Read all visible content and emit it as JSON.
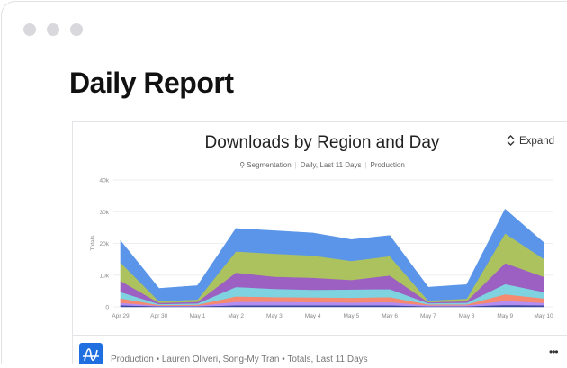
{
  "page": {
    "title": "Daily Report"
  },
  "card": {
    "expand_label": "Expand",
    "expand_icon": "chevron-up-down-icon",
    "subtitle": {
      "segment_icon": "segmentation-icon",
      "type": "Segmentation",
      "range": "Daily, Last 11 Days",
      "project": "Production"
    },
    "footer": {
      "text": "Production • Lauren Oliveri, Song-My Tran • Totals, Last 11 Days",
      "more_label": "•••",
      "app_icon": "amplitude-logo",
      "app_icon_color": "#1f6fe0"
    }
  },
  "chart_data": {
    "type": "area",
    "stacked": true,
    "title": "Downloads by Region and Day",
    "ylabel": "Totals",
    "xlabel": "",
    "ylim": [
      0,
      40000
    ],
    "yticks": [
      {
        "value": 0,
        "label": "0"
      },
      {
        "value": 10000,
        "label": "10k"
      },
      {
        "value": 20000,
        "label": "20k"
      },
      {
        "value": 30000,
        "label": "30k"
      },
      {
        "value": 40000,
        "label": "40k"
      }
    ],
    "grid": true,
    "legend": "none",
    "categories": [
      "Apr 29",
      "Apr 30",
      "May 1",
      "May 2",
      "May 3",
      "May 4",
      "May 5",
      "May 6",
      "May 7",
      "May 8",
      "May 9",
      "May 10"
    ],
    "series": [
      {
        "color": "#3b4a9c",
        "values": [
          500,
          200,
          200,
          500,
          500,
          500,
          500,
          500,
          200,
          200,
          600,
          500
        ]
      },
      {
        "color": "#b48df2",
        "values": [
          800,
          200,
          200,
          1100,
          1100,
          1000,
          900,
          1000,
          300,
          300,
          1300,
          800
        ]
      },
      {
        "color": "#f58a70",
        "values": [
          1400,
          200,
          300,
          1700,
          1500,
          1500,
          1500,
          1600,
          300,
          300,
          2100,
          1400
        ]
      },
      {
        "color": "#7fd2df",
        "values": [
          2000,
          300,
          400,
          3000,
          2600,
          2400,
          2600,
          2500,
          400,
          500,
          3200,
          2000
        ]
      },
      {
        "color": "#9c5fc2",
        "values": [
          3500,
          400,
          500,
          4500,
          3800,
          3800,
          3000,
          4300,
          300,
          500,
          6600,
          4800
        ]
      },
      {
        "color": "#abc25f",
        "values": [
          5800,
          500,
          700,
          6700,
          7300,
          7000,
          6000,
          6100,
          500,
          800,
          9400,
          5700
        ]
      },
      {
        "color": "#5a95e9",
        "values": [
          6800,
          4000,
          4400,
          7200,
          7200,
          7100,
          6700,
          6500,
          4200,
          4400,
          7600,
          5100
        ]
      }
    ]
  }
}
